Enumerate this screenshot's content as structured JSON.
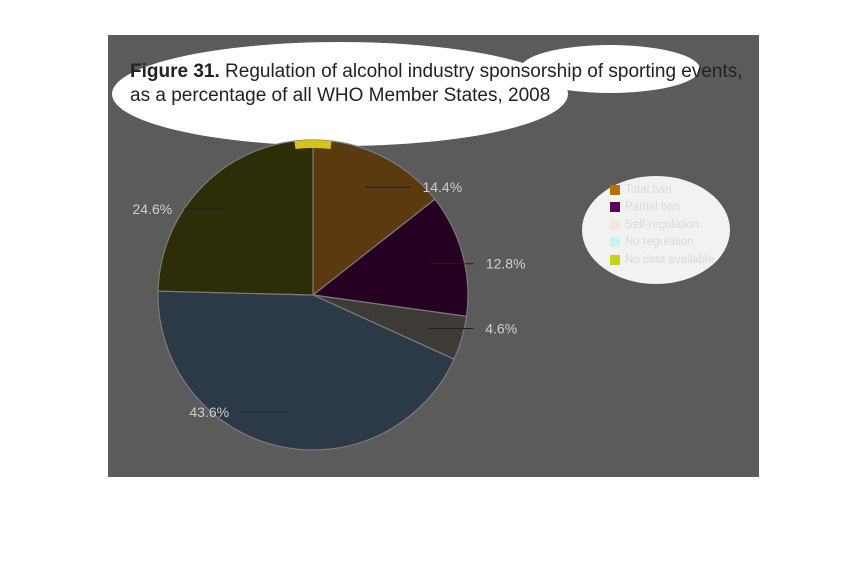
{
  "figure": {
    "prefix": "Figure 31.",
    "title_line1": "Regulation of alcohol industry sponsorship of sporting events,",
    "title_line2": "as a percentage of all WHO Member States, 2008"
  },
  "colors": {
    "panel": "#5b5b5b",
    "total_ban": "#5a3a0e",
    "partial_ban": "#250022",
    "self_regulation": "#3e3a36",
    "no_regulation": "#2c3946",
    "no_data": "#2d2e08",
    "label": "#cfcfcf"
  },
  "chart_data": {
    "type": "pie",
    "title": "Regulation of alcohol industry sponsorship of sporting events, as a percentage of all WHO Member States, 2008",
    "legend_position": "right",
    "series": [
      {
        "name": "Total ban",
        "value": 14.4,
        "label": "14.4%",
        "color": "#5a3a0e",
        "legend_color": "#b5720c"
      },
      {
        "name": "Partial ban",
        "value": 12.8,
        "label": "12.8%",
        "color": "#250022",
        "legend_color": "#5e005a"
      },
      {
        "name": "Self-regulation",
        "value": 4.6,
        "label": "4.6%",
        "color": "#3e3a36",
        "legend_color": "#f3e7e0"
      },
      {
        "name": "No regulation",
        "value": 43.6,
        "label": "43.6%",
        "color": "#2c3946",
        "legend_color": "#c9f2f3"
      },
      {
        "name": "No data available",
        "value": 24.6,
        "label": "24.6%",
        "color": "#2d2e08",
        "legend_color": "#c6d31c"
      }
    ]
  }
}
